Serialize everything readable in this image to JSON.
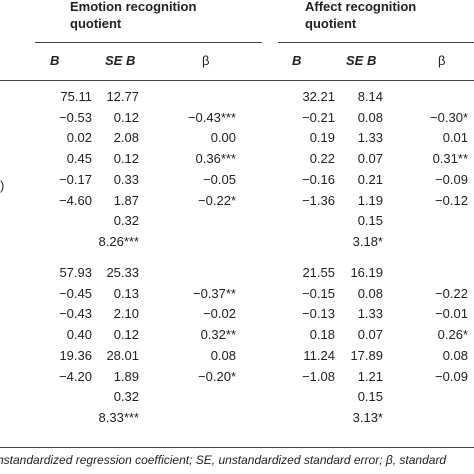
{
  "headers": {
    "emotion": [
      "Emotion recognition",
      "quotient"
    ],
    "affect": [
      "Affect recognition",
      "quotient"
    ],
    "sub": [
      "B",
      "SE B",
      "β",
      "B",
      "SE B",
      "β"
    ]
  },
  "row_label_fragment": ")",
  "blocks": [
    {
      "rows": [
        [
          "75.11",
          "12.77",
          "",
          "32.21",
          "8.14",
          ""
        ],
        [
          "−0.53",
          "0.12",
          "−0.43***",
          "−0.21",
          "0.08",
          "−0.30*"
        ],
        [
          "0.02",
          "2.08",
          "0.00",
          "0.19",
          "1.33",
          "0.01"
        ],
        [
          "0.45",
          "0.12",
          "0.36***",
          "0.22",
          "0.07",
          "0.31**"
        ],
        [
          "−0.17",
          "0.33",
          "−0.05",
          "−0.16",
          "0.21",
          "−0.09"
        ],
        [
          "−4.60",
          "1.87",
          "−0.22*",
          "−1.36",
          "1.19",
          "−0.12"
        ],
        [
          "",
          "0.32",
          "",
          "",
          "0.15",
          ""
        ],
        [
          "",
          "8.26***",
          "",
          "",
          "3.18*",
          ""
        ]
      ]
    },
    {
      "rows": [
        [
          "57.93",
          "25.33",
          "",
          "21.55",
          "16.19",
          ""
        ],
        [
          "−0.45",
          "0.13",
          "−0.37**",
          "−0.15",
          "0.08",
          "−0.22"
        ],
        [
          "−0.43",
          "2.10",
          "−0.02",
          "−0.13",
          "1.33",
          "−0.01"
        ],
        [
          "0.40",
          "0.12",
          "0.32**",
          "0.18",
          "0.07",
          "0.26*"
        ],
        [
          "19.36",
          "28.01",
          "0.08",
          "11.24",
          "17.89",
          "0.08"
        ],
        [
          "−4.20",
          "1.89",
          "−0.20*",
          "−1.08",
          "1.21",
          "−0.09"
        ],
        [
          "",
          "0.32",
          "",
          "",
          "0.15",
          ""
        ],
        [
          "",
          "8.33***",
          "",
          "",
          "3.13*",
          ""
        ]
      ]
    }
  ],
  "footnote": "nstandardized regression coefficient; SE, unstandardized standard error; β, standard"
}
